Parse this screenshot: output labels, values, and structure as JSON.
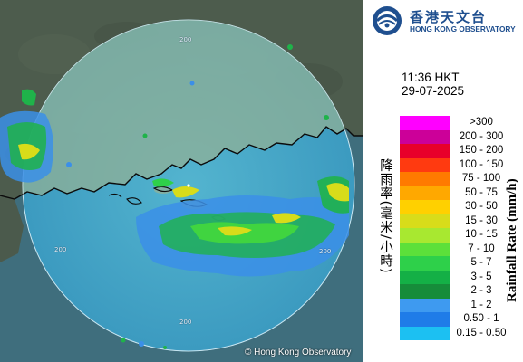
{
  "header": {
    "org_name_cn": "香港天文台",
    "org_name_en": "HONG KONG OBSERVATORY",
    "time": "11:36 HKT",
    "date": "29-07-2025"
  },
  "legend": {
    "title_cn": "降雨率(毫米/小時)",
    "title_en": "Rainfall Rate (mm/h)",
    "items": [
      {
        "label": ">300",
        "color": "#ff00ff"
      },
      {
        "label": "200 - 300",
        "color": "#cc0099"
      },
      {
        "label": "150 - 200",
        "color": "#e8002a"
      },
      {
        "label": "100 - 150",
        "color": "#ff3a10"
      },
      {
        "label": "75 - 100",
        "color": "#ff7a00"
      },
      {
        "label": "50 - 75",
        "color": "#ffa800"
      },
      {
        "label": "30 - 50",
        "color": "#ffd000"
      },
      {
        "label": "15 - 30",
        "color": "#d8dc1a"
      },
      {
        "label": "10 - 15",
        "color": "#a8e830"
      },
      {
        "label": "7 - 10",
        "color": "#5ce03a"
      },
      {
        "label": "5 - 7",
        "color": "#2ed04a"
      },
      {
        "label": "3 - 5",
        "color": "#14b046"
      },
      {
        "label": "2 - 3",
        "color": "#168c3a"
      },
      {
        "label": "1 - 2",
        "color": "#3e9af0"
      },
      {
        "label": "0.50 - 1",
        "color": "#1f7ce8"
      },
      {
        "label": "0.15 - 0.50",
        "color": "#1cc0f2"
      }
    ]
  },
  "map": {
    "range_labels": [
      "200",
      "200",
      "200",
      "200"
    ],
    "copyright": "© Hong Kong Observatory",
    "colors": {
      "sea": "#3c6f7e",
      "radar_disk": "#4bbfe0",
      "land": "#4c5b4e",
      "coast": "#000000"
    }
  }
}
